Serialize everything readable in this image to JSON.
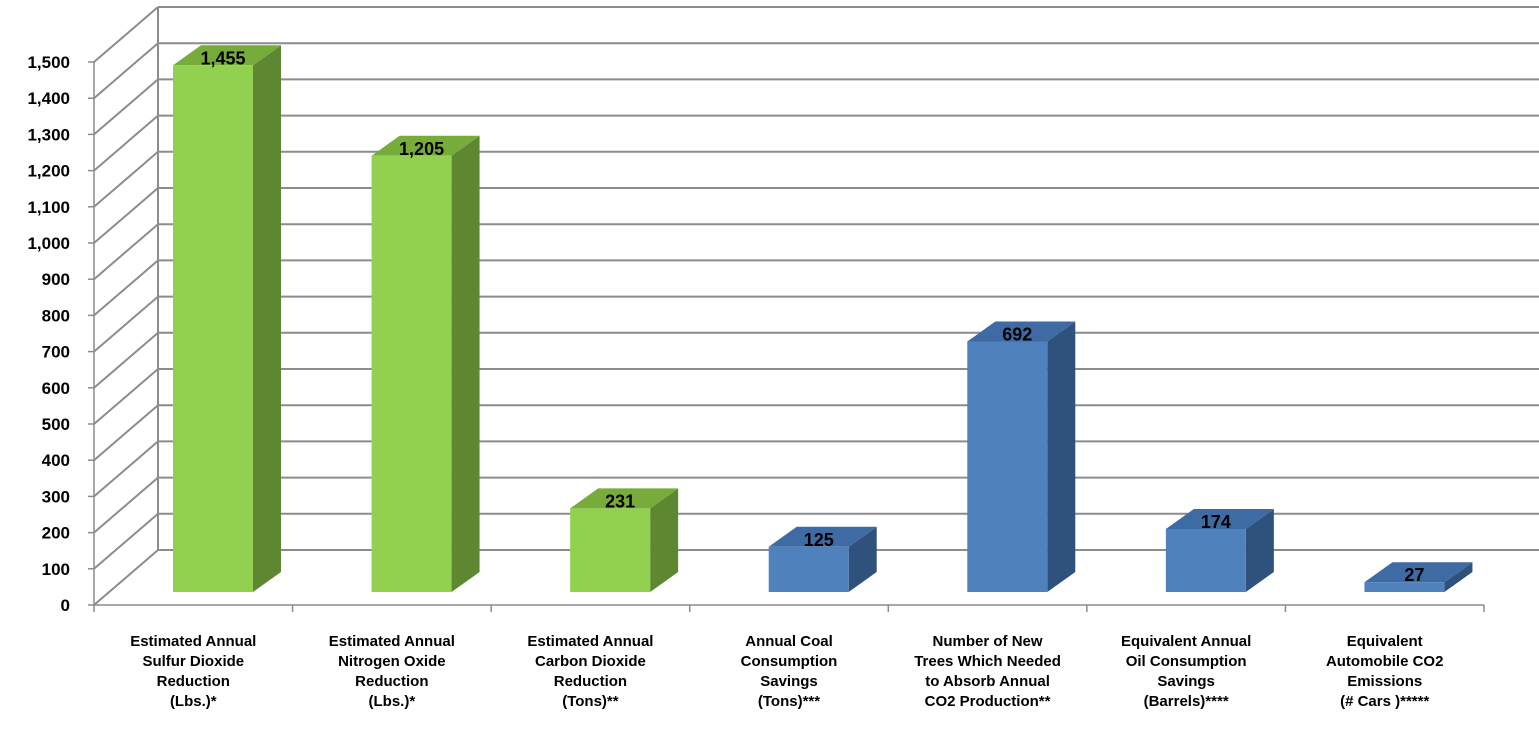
{
  "chart_data": {
    "type": "bar",
    "style": "3d-column",
    "title": "",
    "xlabel": "",
    "ylabel": "",
    "ylim": [
      0,
      1500
    ],
    "yticks": [
      "0",
      "100",
      "200",
      "300",
      "400",
      "500",
      "600",
      "700",
      "800",
      "900",
      "1,000",
      "1,100",
      "1,200",
      "1,300",
      "1,400",
      "1,500"
    ],
    "grid": true,
    "legend": "none",
    "categories": [
      [
        "Estimated Annual",
        "Sulfur Dioxide",
        "Reduction",
        "(Lbs.)*"
      ],
      [
        "Estimated Annual",
        "Nitrogen Oxide",
        "Reduction",
        "(Lbs.)*"
      ],
      [
        "Estimated Annual",
        "Carbon Dioxide",
        "Reduction",
        "(Tons)**"
      ],
      [
        "Annual Coal",
        "Consumption",
        "Savings",
        "(Tons)***"
      ],
      [
        "Number of New",
        "Trees Which Needed",
        "to Absorb Annual",
        "CO2 Production**"
      ],
      [
        "Equivalent Annual",
        "Oil Consumption",
        "Savings",
        "(Barrels)****"
      ],
      [
        "Equivalent",
        "Automobile CO2",
        "Emissions",
        "(# Cars )*****"
      ]
    ],
    "values": [
      1455,
      1205,
      231,
      125,
      692,
      174,
      27
    ],
    "value_labels": [
      "1,455",
      "1,205",
      "231",
      "125",
      "692",
      "174",
      "27"
    ],
    "bar_colors": [
      "green",
      "green",
      "green",
      "blue",
      "blue",
      "blue",
      "blue"
    ],
    "colors": {
      "green": {
        "front": "#92D050",
        "side": "#5E8732",
        "top": "#77AC3A"
      },
      "blue": {
        "front": "#4F81BD",
        "side": "#2F527C",
        "top": "#3E6BA3"
      },
      "grid": "#8C8C8C"
    }
  }
}
